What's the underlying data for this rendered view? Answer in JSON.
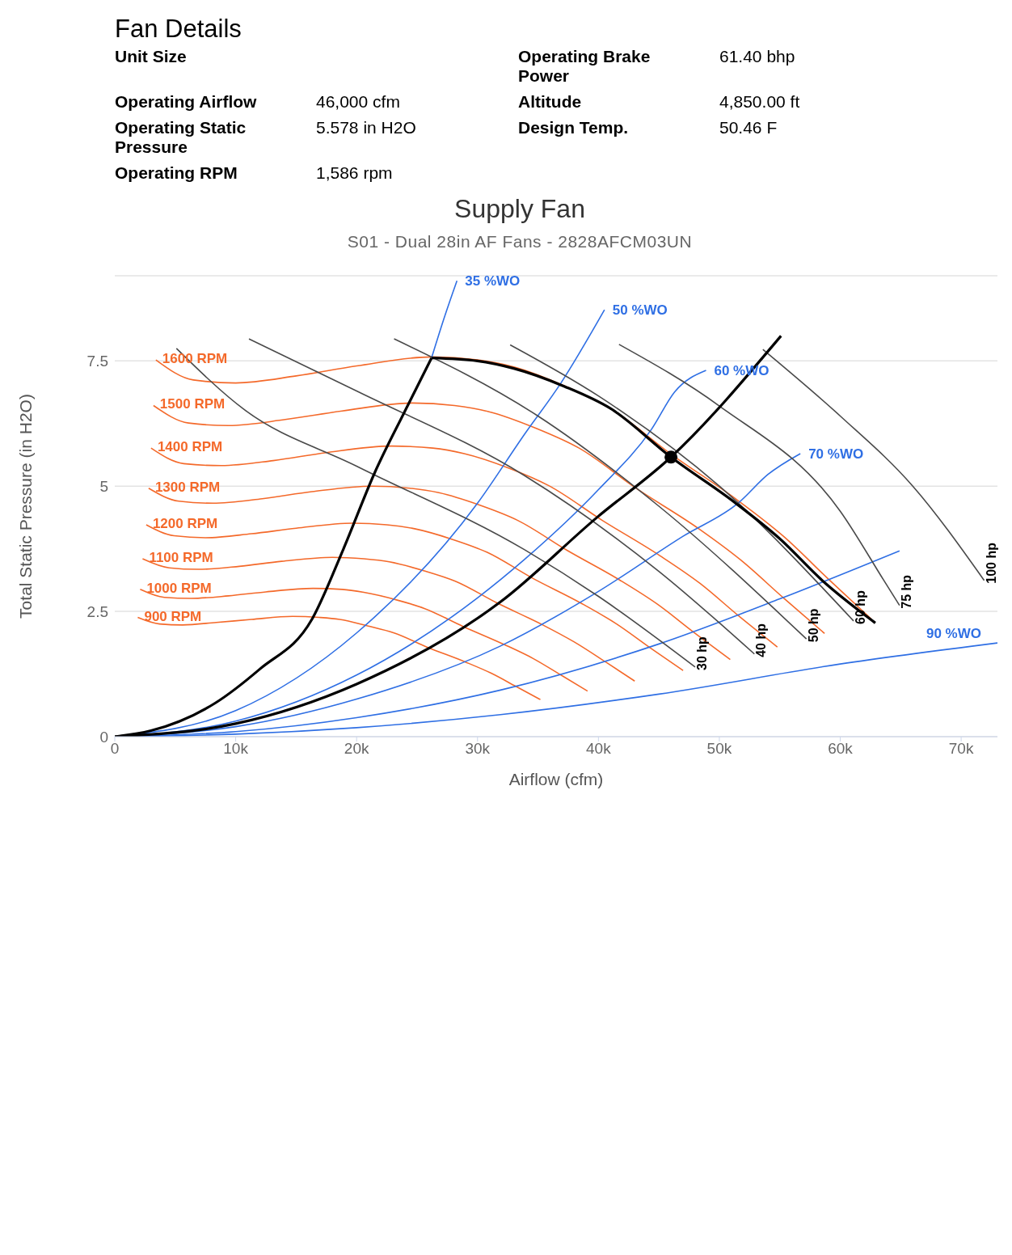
{
  "chart_data": [
    {
      "type": "other",
      "title": "Fan Details",
      "annotations": [
        "Unit Size",
        "Operating Airflow",
        "46,000 cfm",
        "Operating Static Pressure",
        "5.578 in H2O",
        "Operating RPM",
        "1,586 rpm",
        "Operating Brake Power",
        "61.40 bhp",
        "Altitude",
        "4,850.00 ft",
        "Design Temp.",
        "50.46 F"
      ]
    },
    {
      "type": "line",
      "title": "Supply Fan",
      "subtitle": "S01 - Dual 28in AF Fans - 2828AFCM03UN",
      "xlabel": "Airflow (cfm)",
      "ylabel": "Total Static Pressure (in H2O)",
      "xlim": [
        0,
        73000
      ],
      "ylim": [
        0,
        9.2
      ],
      "xticks": [
        0,
        {
          "value": 10000,
          "label": "10k"
        },
        {
          "value": 20000,
          "label": "20k"
        },
        {
          "value": 30000,
          "label": "30k"
        },
        {
          "value": 40000,
          "label": "40k"
        },
        {
          "value": 50000,
          "label": "50k"
        },
        {
          "value": 60000,
          "label": "60k"
        },
        {
          "value": 70000,
          "label": "70k"
        }
      ],
      "yticks": [
        0,
        2.5,
        5,
        7.5
      ],
      "grid": "y",
      "marker": "none",
      "series": [
        {
          "name": "1600 RPM",
          "color": "#f4692a",
          "x": [
            3400,
            6500,
            10000,
            15000,
            20000,
            26200,
            30000,
            33000,
            37200,
            41000,
            46000,
            51500,
            55300,
            59000,
            62600
          ],
          "values": [
            7.52,
            7.12,
            7.06,
            7.2,
            7.4,
            7.58,
            7.52,
            7.38,
            7.0,
            6.55,
            5.64,
            4.72,
            4.0,
            3.15,
            2.34
          ]
        },
        {
          "name": "1500 RPM",
          "color": "#f4692a",
          "x": [
            3200,
            6100,
            9400,
            14100,
            18800,
            24600,
            28100,
            30900,
            34900,
            38400,
            43100,
            48300,
            51800,
            55300,
            58700
          ],
          "values": [
            6.61,
            6.26,
            6.21,
            6.33,
            6.5,
            6.66,
            6.61,
            6.49,
            6.15,
            5.76,
            4.96,
            4.15,
            3.52,
            2.77,
            2.06
          ]
        },
        {
          "name": "1400 RPM",
          "color": "#f4692a",
          "x": [
            3000,
            5700,
            8800,
            13100,
            17500,
            22900,
            26300,
            28900,
            32600,
            35900,
            40300,
            45100,
            48400,
            51600,
            54800
          ],
          "values": [
            5.76,
            5.45,
            5.41,
            5.51,
            5.67,
            5.8,
            5.76,
            5.65,
            5.36,
            5.01,
            4.32,
            3.61,
            3.06,
            2.41,
            1.79
          ]
        },
        {
          "name": "1300 RPM",
          "color": "#f4692a",
          "x": [
            2800,
            5300,
            8100,
            12200,
            16300,
            21300,
            24400,
            26800,
            30200,
            33300,
            37400,
            41800,
            44900,
            47900,
            50900
          ],
          "values": [
            4.96,
            4.7,
            4.66,
            4.75,
            4.89,
            5.0,
            4.96,
            4.87,
            4.62,
            4.32,
            3.72,
            3.12,
            2.64,
            2.08,
            1.54
          ]
        },
        {
          "name": "1200 RPM",
          "color": "#f4692a",
          "x": [
            2600,
            4900,
            7500,
            11300,
            15000,
            19700,
            22500,
            24800,
            27900,
            30800,
            34500,
            38600,
            41500,
            44300,
            47000
          ],
          "values": [
            4.23,
            4.01,
            3.97,
            4.05,
            4.16,
            4.26,
            4.23,
            4.15,
            3.94,
            3.68,
            3.17,
            2.66,
            2.25,
            1.77,
            1.32
          ]
        },
        {
          "name": "1100 RPM",
          "color": "#f4692a",
          "x": [
            2300,
            4500,
            6900,
            10300,
            13800,
            18000,
            20600,
            22700,
            25600,
            28200,
            31600,
            35400,
            38000,
            40600,
            43000
          ],
          "values": [
            3.55,
            3.37,
            3.34,
            3.4,
            3.5,
            3.58,
            3.55,
            3.49,
            3.31,
            3.1,
            2.67,
            2.23,
            1.89,
            1.49,
            1.11
          ]
        },
        {
          "name": "1000 RPM",
          "color": "#f4692a",
          "x": [
            2100,
            4100,
            6300,
            9400,
            12500,
            16400,
            18800,
            20600,
            23300,
            25600,
            28800,
            32200,
            34600,
            36900,
            39100
          ],
          "values": [
            2.94,
            2.78,
            2.76,
            2.81,
            2.89,
            2.96,
            2.94,
            2.88,
            2.73,
            2.56,
            2.2,
            1.84,
            1.56,
            1.23,
            0.91
          ]
        },
        {
          "name": "900 RPM",
          "color": "#f4692a",
          "x": [
            1900,
            3700,
            5600,
            8400,
            11300,
            14700,
            16900,
            18600,
            20900,
            23100,
            25900,
            29000,
            31100,
            33200,
            35200
          ],
          "values": [
            2.38,
            2.25,
            2.23,
            2.28,
            2.34,
            2.4,
            2.38,
            2.34,
            2.21,
            2.07,
            1.78,
            1.49,
            1.27,
            1.0,
            0.74
          ]
        },
        {
          "name": "35 %WO",
          "color": "#2f6fe4",
          "x": [
            26200,
            27300,
            28300
          ],
          "values": [
            7.56,
            8.4,
            9.1
          ]
        },
        {
          "name": "50 %WO",
          "color": "#2f6fe4",
          "x": [
            0,
            10000,
            20000,
            30000,
            33900,
            36900,
            40500
          ],
          "values": [
            0,
            0.52,
            2.07,
            4.66,
            6.04,
            7.06,
            8.52
          ]
        },
        {
          "name": "60 %WO",
          "color": "#2f6fe4",
          "x": [
            0,
            10000,
            20000,
            30000,
            33900,
            40000,
            44400,
            46300,
            48900
          ],
          "values": [
            0,
            0.31,
            1.23,
            2.77,
            3.54,
            4.93,
            6.14,
            6.88,
            7.31
          ]
        },
        {
          "name": "70 %WO",
          "color": "#2f6fe4",
          "x": [
            0,
            10000,
            20000,
            31900,
            40000,
            47000,
            51600,
            54000,
            56700
          ],
          "values": [
            0,
            0.2,
            0.75,
            1.81,
            2.9,
            4.0,
            4.67,
            5.23,
            5.65
          ]
        },
        {
          "color": "#2f6fe4",
          "x": [
            0,
            10000,
            20000,
            31900,
            45000,
            55000,
            64900
          ],
          "values": [
            0,
            0.1,
            0.38,
            0.93,
            1.85,
            2.75,
            3.71
          ]
        },
        {
          "name": "90 %WO",
          "color": "#2f6fe4",
          "x": [
            0,
            10000,
            20000,
            31900,
            45000,
            60000,
            73000
          ],
          "values": [
            0,
            0.05,
            0.18,
            0.44,
            0.85,
            1.45,
            1.87
          ]
        },
        {
          "name": "30 hp",
          "color": "#4a4a4a",
          "x": [
            5100,
            10700,
            20000,
            33900,
            40000,
            48000
          ],
          "values": [
            7.75,
            6.53,
            5.4,
            3.73,
            2.8,
            1.39
          ]
        },
        {
          "name": "40 hp",
          "color": "#4a4a4a",
          "x": [
            11100,
            20000,
            33900,
            45000,
            52900
          ],
          "values": [
            7.94,
            6.9,
            5.21,
            3.3,
            1.65
          ]
        },
        {
          "name": "50 hp",
          "color": "#4a4a4a",
          "x": [
            23100,
            35000,
            45000,
            57200
          ],
          "values": [
            7.94,
            6.4,
            4.6,
            1.95
          ]
        },
        {
          "name": "60 hp",
          "color": "#4a4a4a",
          "x": [
            32700,
            40000,
            50000,
            61100
          ],
          "values": [
            7.82,
            6.8,
            5.0,
            2.31
          ]
        },
        {
          "name": "75 hp",
          "color": "#4a4a4a",
          "x": [
            41700,
            50000,
            60000,
            63600,
            64900
          ],
          "values": [
            7.83,
            6.6,
            4.5,
            3.12,
            2.62
          ]
        },
        {
          "name": "100 hp",
          "color": "#4a4a4a",
          "x": [
            53600,
            60000,
            66000,
            71900
          ],
          "values": [
            7.73,
            6.4,
            5.0,
            3.12
          ]
        },
        {
          "color": "#000000",
          "x": [
            0,
            3000,
            8300,
            12000,
            16300,
            18900,
            21500,
            24000,
            26200
          ],
          "values": [
            0,
            0.12,
            0.67,
            1.35,
            2.34,
            3.74,
            5.27,
            6.5,
            7.56
          ]
        },
        {
          "color": "#000000",
          "x": [
            26200,
            30000,
            33000,
            37200,
            41000,
            46000,
            51300,
            55000,
            58500,
            62900
          ],
          "values": [
            7.56,
            7.5,
            7.35,
            6.99,
            6.55,
            5.58,
            4.67,
            3.95,
            3.12,
            2.27
          ]
        },
        {
          "color": "#000000",
          "x": [
            0,
            10000,
            20000,
            31900,
            39900,
            46000,
            55100
          ],
          "values": [
            0,
            0.26,
            1.05,
            2.69,
            4.38,
            5.58,
            8.0
          ]
        },
        {
          "type": "scatter",
          "marker": "circle",
          "color": "#000000",
          "x": [
            46000
          ],
          "values": [
            5.58
          ]
        }
      ]
    }
  ]
}
